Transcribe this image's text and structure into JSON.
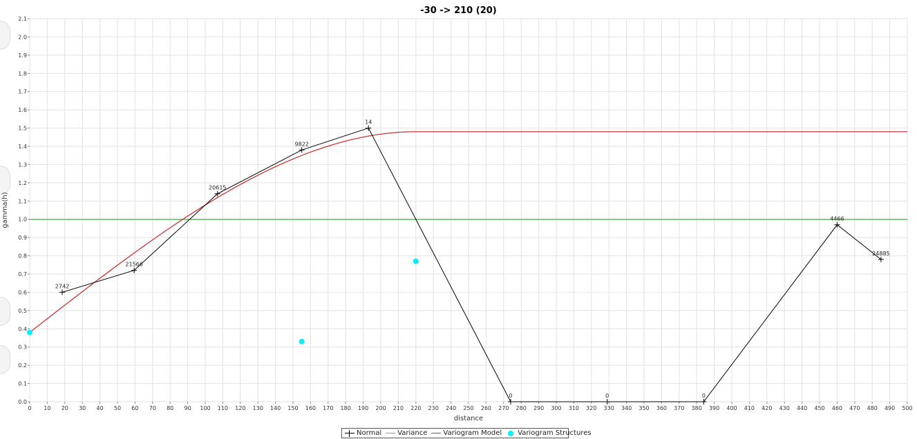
{
  "chart_data": {
    "type": "line",
    "title": "-30 -> 210 (20)",
    "xlabel": "distance",
    "ylabel": "gamma(h)",
    "xlim": [
      0,
      500
    ],
    "ylim": [
      0,
      2.1
    ],
    "x_ticks": [
      0,
      10,
      20,
      30,
      40,
      50,
      60,
      70,
      80,
      90,
      100,
      110,
      120,
      130,
      140,
      150,
      160,
      170,
      180,
      190,
      200,
      210,
      220,
      230,
      240,
      250,
      260,
      270,
      280,
      290,
      300,
      310,
      320,
      330,
      340,
      350,
      360,
      370,
      380,
      390,
      400,
      410,
      420,
      430,
      440,
      450,
      460,
      470,
      480,
      490,
      500
    ],
    "y_ticks": [
      0.0,
      0.1,
      0.2,
      0.3,
      0.4,
      0.5,
      0.6,
      0.7,
      0.8,
      0.9,
      1.0,
      1.1,
      1.2,
      1.3,
      1.4,
      1.5,
      1.6,
      1.7,
      1.8,
      1.9,
      2.0,
      2.1
    ],
    "grid": true,
    "legend_position": "bottom",
    "series": [
      {
        "name": "Normal",
        "color": "#000000",
        "points": [
          {
            "x": 18.5,
            "y": 0.6,
            "label": "2742"
          },
          {
            "x": 59.5,
            "y": 0.72,
            "label": "21566"
          },
          {
            "x": 107,
            "y": 1.14,
            "label": "20615"
          },
          {
            "x": 155,
            "y": 1.38,
            "label": "9822"
          },
          {
            "x": 193,
            "y": 1.5,
            "label": "14"
          },
          {
            "x": 274,
            "y": 0.0,
            "label": "0"
          },
          {
            "x": 329,
            "y": 0.0,
            "label": "0"
          },
          {
            "x": 384,
            "y": 0.0,
            "label": "0"
          },
          {
            "x": 460,
            "y": 0.97,
            "label": "4466"
          },
          {
            "x": 485,
            "y": 0.78,
            "label": "24885"
          }
        ]
      },
      {
        "name": "Variance",
        "color": "#3bd43b",
        "y": 1.0
      },
      {
        "name": "Variogram Model",
        "color": "#cc3333",
        "nugget": 0.38,
        "sill": 1.48,
        "range": 220,
        "model": "spherical"
      },
      {
        "name": "Variogram Structures",
        "color": "#00f0ff",
        "points": [
          {
            "x": 0,
            "y": 0.38
          },
          {
            "x": 155,
            "y": 0.33
          },
          {
            "x": 220,
            "y": 0.77
          }
        ]
      }
    ]
  }
}
